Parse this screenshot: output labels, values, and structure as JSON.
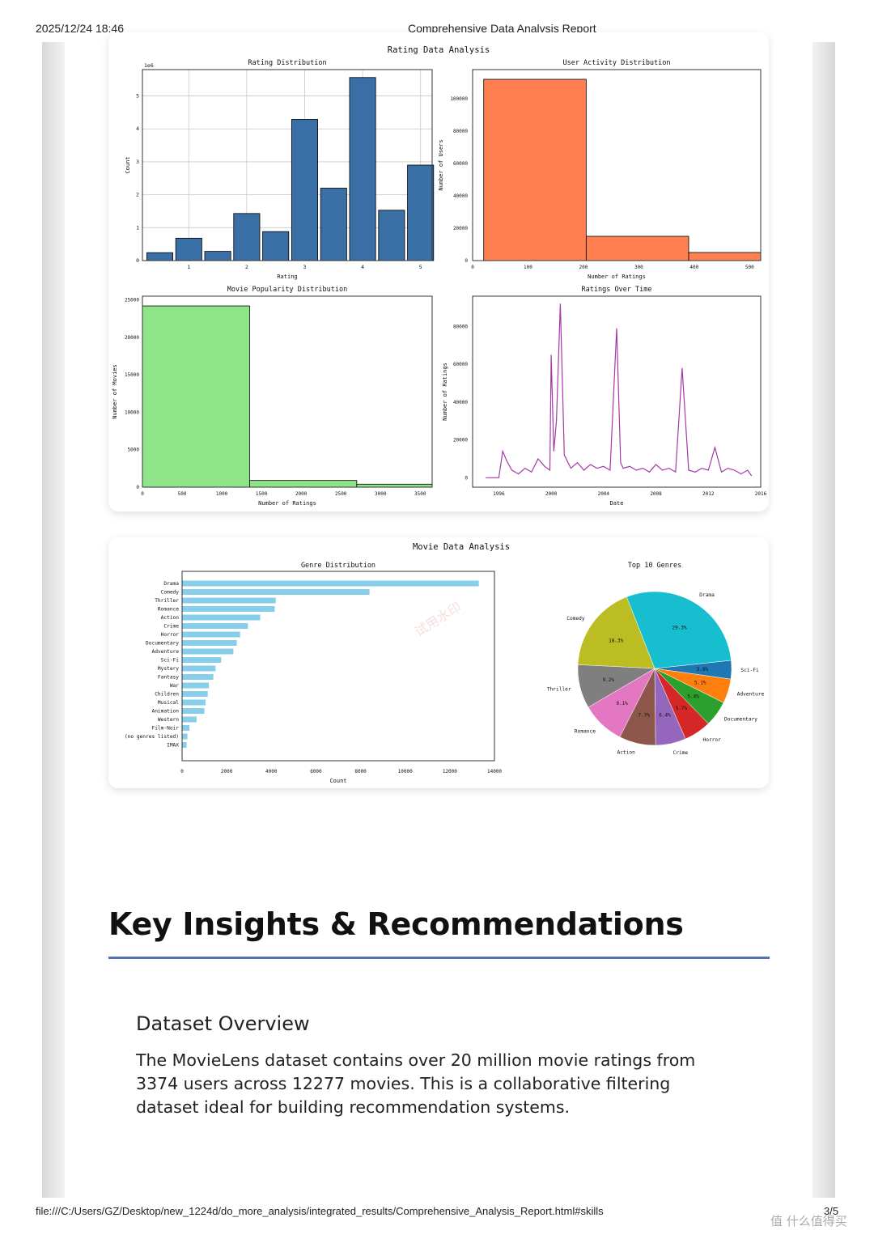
{
  "page": {
    "datetime": "2025/12/24 18:46",
    "title": "Comprehensive Data Analysis Report",
    "footer_path": "file:///C:/Users/GZ/Desktop/new_1224d/do_more_analysis/integrated_results/Comprehensive_Analysis_Report.html#skills",
    "page_number": "3/5",
    "watermark": "值 什么值得买"
  },
  "figure1": {
    "suptitle": "Rating Data Analysis",
    "rating_hist": {
      "title": "Rating Distribution",
      "xlabel": "Rating",
      "ylabel": "Count",
      "offset": "1e6",
      "xticks": [
        "1",
        "2",
        "3",
        "4",
        "5"
      ],
      "yticks": [
        "0",
        "1",
        "2",
        "3",
        "4",
        "5"
      ]
    },
    "user_activity": {
      "title": "User Activity Distribution",
      "xlabel": "Number of Ratings",
      "ylabel": "Number of Users",
      "xticks": [
        "0",
        "100",
        "200",
        "300",
        "400",
        "500"
      ],
      "yticks": [
        "0",
        "20000",
        "40000",
        "60000",
        "80000",
        "100000"
      ]
    },
    "movie_popularity": {
      "title": "Movie Popularity Distribution",
      "xlabel": "Number of Ratings",
      "ylabel": "Number of Movies",
      "xticks": [
        "0",
        "500",
        "1000",
        "1500",
        "2000",
        "2500",
        "3000",
        "3500"
      ],
      "yticks": [
        "0",
        "5000",
        "10000",
        "15000",
        "20000",
        "25000"
      ]
    },
    "ratings_time": {
      "title": "Ratings Over Time",
      "xlabel": "Date",
      "ylabel": "Number of Ratings",
      "xticks": [
        "1996",
        "2000",
        "2004",
        "2008",
        "2012",
        "2016"
      ],
      "yticks": [
        "0",
        "20000",
        "40000",
        "60000",
        "80000"
      ]
    }
  },
  "figure2": {
    "suptitle": "Movie Data Analysis",
    "genre_bar": {
      "title": "Genre Distribution",
      "xlabel": "Count",
      "xticks": [
        "0",
        "2000",
        "4000",
        "6000",
        "8000",
        "10000",
        "12000",
        "14000"
      ],
      "watermark": "试用水印"
    },
    "top_genres": {
      "title": "Top 10 Genres"
    }
  },
  "insights": {
    "heading": "Key Insights & Recommendations",
    "subheading": "Dataset Overview",
    "paragraph": "The MovieLens dataset contains over 20 million movie ratings from 3374 users across 12277 movies. This is a collaborative filtering dataset ideal for building recommendation systems."
  },
  "colors": {
    "rating_bars": "#3a6fa5",
    "activity_bars": "#ff7f50",
    "popularity_bars": "#8fe388",
    "time_line": "#a43aa8",
    "genre_bars": "#87ceeb",
    "heading_rule": "#5570b4"
  },
  "chart_data": [
    {
      "type": "bar",
      "title": "Rating Distribution",
      "xlabel": "Rating",
      "ylabel": "Count",
      "categories": [
        "0.5",
        "1.0",
        "1.5",
        "2.0",
        "2.5",
        "3.0",
        "3.5",
        "4.0",
        "4.5",
        "5.0"
      ],
      "values": [
        240000,
        680000,
        280000,
        1430000,
        880000,
        4290000,
        2200000,
        5560000,
        1530000,
        2900000
      ],
      "ylim": [
        0,
        5800000
      ]
    },
    {
      "type": "bar",
      "title": "User Activity Distribution",
      "xlabel": "Number of Ratings",
      "ylabel": "Number of Users",
      "bins": [
        [
          20,
          205
        ],
        [
          205,
          390
        ],
        [
          390,
          575
        ]
      ],
      "values": [
        112000,
        15000,
        5000
      ],
      "xlim": [
        0,
        520
      ],
      "ylim": [
        0,
        118000
      ]
    },
    {
      "type": "bar",
      "title": "Movie Popularity Distribution",
      "xlabel": "Number of Ratings",
      "ylabel": "Number of Movies",
      "bins": [
        [
          0,
          1350
        ],
        [
          1350,
          2700
        ],
        [
          2700,
          4050
        ]
      ],
      "values": [
        24200,
        900,
        400
      ],
      "xlim": [
        0,
        3650
      ],
      "ylim": [
        0,
        25500
      ]
    },
    {
      "type": "line",
      "title": "Ratings Over Time",
      "xlabel": "Date",
      "ylabel": "Number of Ratings",
      "x": [
        1995.0,
        1996.0,
        1996.3,
        1996.6,
        1997.0,
        1997.5,
        1998.0,
        1998.5,
        1999.0,
        1999.5,
        1999.9,
        2000.0,
        2000.2,
        2000.4,
        2000.7,
        2001.0,
        2001.5,
        2002.0,
        2002.5,
        2003.0,
        2003.5,
        2004.0,
        2004.5,
        2005.0,
        2005.3,
        2005.5,
        2006.0,
        2006.5,
        2007.0,
        2007.5,
        2008.0,
        2008.5,
        2009.0,
        2009.5,
        2010.0,
        2010.5,
        2011.0,
        2011.5,
        2012.0,
        2012.5,
        2013.0,
        2013.5,
        2014.0,
        2014.5,
        2015.0,
        2015.3
      ],
      "y": [
        0,
        0,
        14000,
        9000,
        4000,
        2000,
        5000,
        3000,
        10000,
        6000,
        4000,
        65000,
        14000,
        30000,
        92000,
        12000,
        5000,
        8000,
        4000,
        7000,
        5000,
        6000,
        4000,
        79000,
        8000,
        5000,
        6000,
        4000,
        5000,
        3000,
        7000,
        4000,
        5000,
        3000,
        58000,
        4000,
        3000,
        5000,
        4000,
        16000,
        3000,
        5000,
        4000,
        2000,
        4000,
        1000
      ],
      "xlim": [
        1994,
        2016
      ],
      "ylim": [
        -5000,
        96000
      ]
    },
    {
      "type": "bar",
      "title": "Genre Distribution",
      "xlabel": "Count",
      "orientation": "horizontal",
      "categories": [
        "Drama",
        "Comedy",
        "Thriller",
        "Romance",
        "Action",
        "Crime",
        "Horror",
        "Documentary",
        "Adventure",
        "Sci-Fi",
        "Mystery",
        "Fantasy",
        "War",
        "Children",
        "Musical",
        "Animation",
        "Western",
        "Film-Noir",
        "(no genres listed)",
        "IMAX"
      ],
      "values": [
        13300,
        8400,
        4200,
        4150,
        3500,
        2950,
        2600,
        2450,
        2300,
        1750,
        1500,
        1400,
        1200,
        1150,
        1050,
        1000,
        650,
        330,
        240,
        200
      ],
      "xlim": [
        0,
        14000
      ]
    },
    {
      "type": "pie",
      "title": "Top 10 Genres",
      "labels": [
        "Sci-Fi",
        "Drama",
        "Comedy",
        "Thriller",
        "Romance",
        "Action",
        "Crime",
        "Horror",
        "Documentary",
        "Adventure"
      ],
      "values": [
        3.9,
        29.3,
        18.3,
        9.2,
        9.1,
        7.7,
        6.4,
        5.7,
        5.4,
        5.1
      ],
      "label_texts": [
        "3.9%",
        "29.3%",
        "18.3%",
        "9.2%",
        "9.1%",
        "7.7%",
        "6.4%",
        "5.7%",
        "5.4%",
        "5.1%"
      ],
      "colors": [
        "#1f77b4",
        "#17becf",
        "#bcbd22",
        "#7f7f7f",
        "#e377c2",
        "#8c564b",
        "#9467bd",
        "#d62728",
        "#2ca02c",
        "#ff7f0e"
      ]
    }
  ]
}
